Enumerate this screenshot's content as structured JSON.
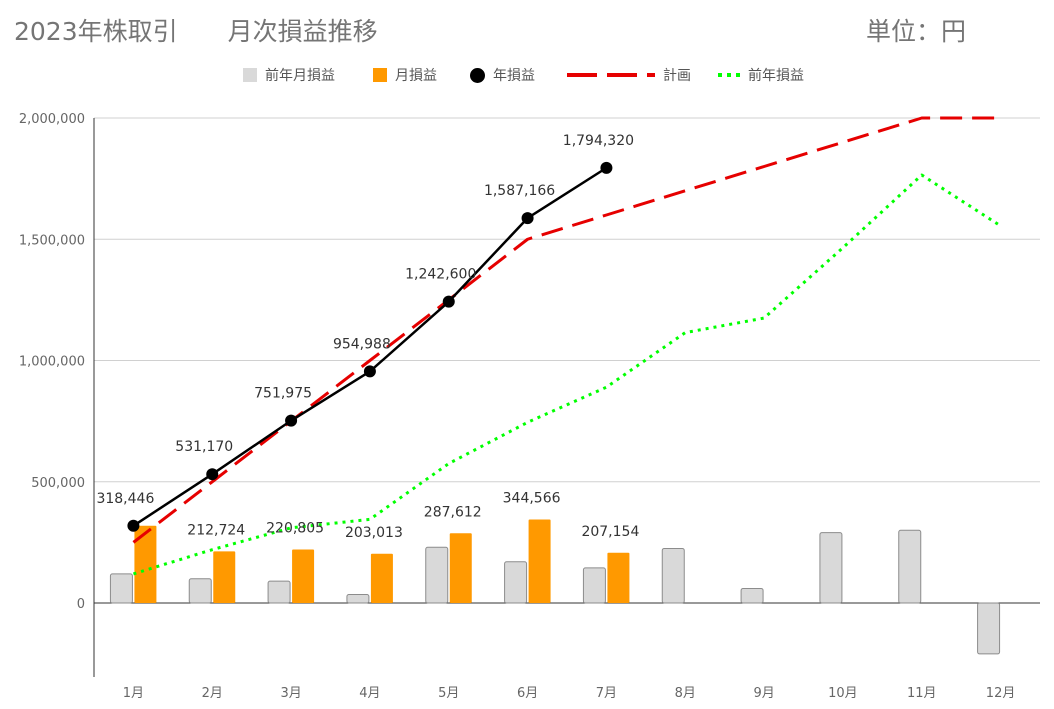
{
  "header": {
    "title": "2023年株取引　　月次損益推移",
    "unit": "単位：円"
  },
  "colors": {
    "prev_month": "#d9d9d9",
    "prev_month_border": "#8c8c8c",
    "month": "#ff9900",
    "year": "#000000",
    "plan": "#e60000",
    "prev_year": "#00ff00",
    "grid": "#d0d0d0",
    "axis": "#333333"
  },
  "chart_data": {
    "type": "bar",
    "title": "2023年株取引　　月次損益推移",
    "unit": "単位：円",
    "categories": [
      "1月",
      "2月",
      "3月",
      "4月",
      "5月",
      "6月",
      "7月",
      "8月",
      "9月",
      "10月",
      "11月",
      "12月"
    ],
    "y_ticks": [
      "2,000,000",
      "1,500,000",
      "1,000,000",
      "500,000",
      "0"
    ],
    "ylim": [
      -300000,
      2000000
    ],
    "grid": true,
    "legend_position": "top",
    "legend": [
      "前年月損益",
      "月損益",
      "年損益",
      "計画",
      "前年損益"
    ],
    "series": [
      {
        "name": "前年月損益",
        "type": "bar",
        "values": [
          120000,
          100000,
          90000,
          35000,
          230000,
          170000,
          145000,
          225000,
          60000,
          290000,
          300000,
          -210000
        ]
      },
      {
        "name": "月損益",
        "type": "bar",
        "values": [
          318446,
          212724,
          220805,
          203013,
          287612,
          344566,
          207154,
          null,
          null,
          null,
          null,
          null
        ],
        "labels": [
          "",
          "212,724",
          "220,805",
          "203,013",
          "287,612",
          "344,566",
          "207,154",
          "",
          "",
          "",
          "",
          ""
        ]
      },
      {
        "name": "年損益",
        "type": "line",
        "values": [
          318446,
          531170,
          751975,
          954988,
          1242600,
          1587166,
          1794320,
          null,
          null,
          null,
          null,
          null
        ],
        "labels": [
          "318,446",
          "531,170",
          "751,975",
          "954,988",
          "1,242,600",
          "1,587,166",
          "1,794,320",
          "",
          "",
          "",
          "",
          ""
        ]
      },
      {
        "name": "計画",
        "type": "line",
        "values": [
          250000,
          500000,
          750000,
          1000000,
          1250000,
          1500000,
          1600000,
          1700000,
          1800000,
          1900000,
          2000000,
          2000000
        ]
      },
      {
        "name": "前年損益",
        "type": "line",
        "values": [
          120000,
          220000,
          310000,
          345000,
          575000,
          745000,
          890000,
          1115000,
          1175000,
          1465000,
          1765000,
          1555000
        ]
      }
    ]
  }
}
